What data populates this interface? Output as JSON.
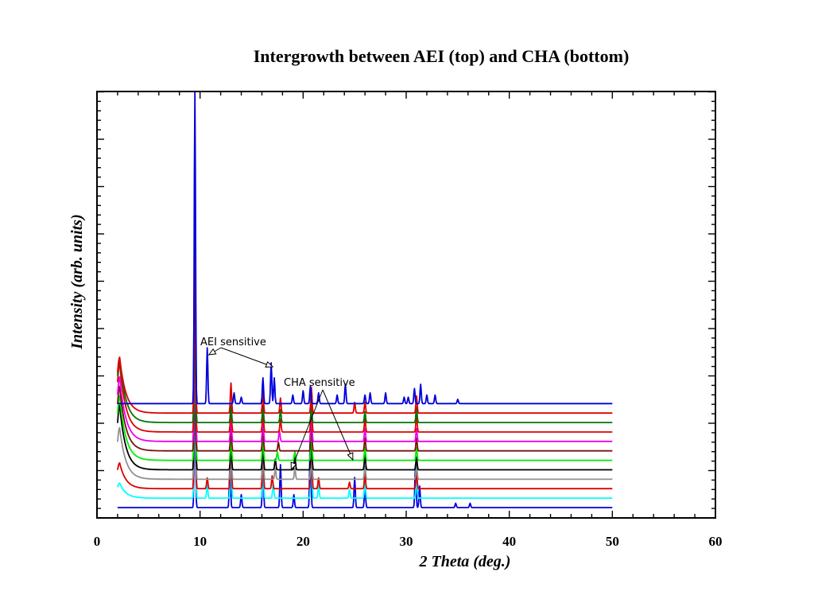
{
  "chart_data": {
    "type": "line",
    "title": "Intergrowth between AEI (top) and CHA (bottom)",
    "xlabel": "2 Theta (deg.)",
    "ylabel": "Intensity (arb. units)",
    "xlim": [
      0,
      60
    ],
    "x_ticks": [
      "0",
      "10",
      "20",
      "30",
      "40",
      "50",
      "60"
    ],
    "y_ticks_labeled": false,
    "grid": false,
    "legend": "none",
    "annotations": [
      {
        "text": "AEI sensitive",
        "arrows_to_2theta": [
          10.7,
          16.9
        ]
      },
      {
        "text": "CHA sensitive",
        "arrows_to_2theta": [
          19.0,
          24.9
        ]
      }
    ],
    "series": [
      {
        "color": "#0000dd",
        "x_range": [
          2,
          50
        ],
        "baseline": 0.0,
        "low_angle": 0.0,
        "peaks": [
          [
            9.5,
            3.2
          ],
          [
            12.9,
            1.0
          ],
          [
            14.0,
            0.3
          ],
          [
            16.1,
            1.0
          ],
          [
            17.8,
            1.0
          ],
          [
            19.1,
            0.3
          ],
          [
            20.7,
            1.8
          ],
          [
            25.0,
            0.7
          ],
          [
            26.0,
            0.5
          ],
          [
            30.9,
            1.0
          ],
          [
            31.3,
            0.5
          ],
          [
            34.8,
            0.1
          ],
          [
            36.2,
            0.1
          ]
        ]
      },
      {
        "color": "#00ffff",
        "x_range": [
          2,
          50
        ],
        "baseline": 0.22,
        "low_angle": 0.35,
        "peaks": [
          [
            9.5,
            5.0
          ],
          [
            10.7,
            0.3
          ],
          [
            13.0,
            0.9
          ],
          [
            16.1,
            0.9
          ],
          [
            17.1,
            0.35
          ],
          [
            20.8,
            1.2
          ],
          [
            21.5,
            0.3
          ],
          [
            24.5,
            0.2
          ],
          [
            26.0,
            0.4
          ],
          [
            31.0,
            0.5
          ]
        ]
      },
      {
        "color": "#dd0000",
        "x_range": [
          2,
          50
        ],
        "baseline": 0.44,
        "low_angle": 0.6,
        "peaks": [
          [
            9.5,
            5.0
          ],
          [
            10.7,
            0.25
          ],
          [
            13.0,
            0.9
          ],
          [
            16.1,
            0.85
          ],
          [
            17.0,
            0.3
          ],
          [
            20.8,
            1.1
          ],
          [
            21.5,
            0.25
          ],
          [
            24.5,
            0.15
          ],
          [
            26.0,
            0.35
          ],
          [
            31.0,
            0.4
          ]
        ]
      },
      {
        "color": "#909090",
        "x_range": [
          2,
          50
        ],
        "baseline": 0.66,
        "low_angle": 1.2,
        "peaks": [
          [
            9.5,
            5.0
          ],
          [
            13.0,
            0.7
          ],
          [
            16.1,
            0.7
          ],
          [
            17.3,
            0.25
          ],
          [
            19.2,
            0.25
          ],
          [
            20.8,
            0.9
          ],
          [
            26.0,
            0.3
          ],
          [
            31.0,
            0.35
          ]
        ]
      },
      {
        "color": "#000000",
        "x_range": [
          2,
          50
        ],
        "baseline": 0.88,
        "low_angle": 1.5,
        "peaks": [
          [
            9.5,
            5.0
          ],
          [
            13.0,
            0.6
          ],
          [
            16.1,
            0.6
          ],
          [
            17.3,
            0.25
          ],
          [
            19.2,
            0.3
          ],
          [
            20.8,
            0.8
          ],
          [
            26.0,
            0.35
          ],
          [
            31.0,
            0.3
          ]
        ]
      },
      {
        "color": "#00ee00",
        "x_range": [
          2,
          50
        ],
        "baseline": 1.1,
        "low_angle": 1.5,
        "peaks": [
          [
            9.5,
            5.0
          ],
          [
            13.0,
            0.55
          ],
          [
            16.1,
            0.55
          ],
          [
            17.5,
            0.2
          ],
          [
            19.2,
            0.2
          ],
          [
            20.8,
            0.75
          ],
          [
            26.0,
            0.3
          ],
          [
            31.0,
            0.3
          ]
        ]
      },
      {
        "color": "#7a1010",
        "x_range": [
          2,
          50
        ],
        "baseline": 1.32,
        "low_angle": 1.5,
        "peaks": [
          [
            9.5,
            5.0
          ],
          [
            13.0,
            0.55
          ],
          [
            16.1,
            0.55
          ],
          [
            17.6,
            0.2
          ],
          [
            20.8,
            0.7
          ],
          [
            26.0,
            0.3
          ],
          [
            31.0,
            0.3
          ]
        ]
      },
      {
        "color": "#ee00ee",
        "x_range": [
          2,
          50
        ],
        "baseline": 1.54,
        "low_angle": 1.5,
        "peaks": [
          [
            9.5,
            5.0
          ],
          [
            13.0,
            0.55
          ],
          [
            16.1,
            0.55
          ],
          [
            17.7,
            0.25
          ],
          [
            20.8,
            0.7
          ],
          [
            26.0,
            0.3
          ],
          [
            31.0,
            0.3
          ]
        ]
      },
      {
        "color": "#dd0000",
        "x_range": [
          2,
          50
        ],
        "baseline": 1.76,
        "low_angle": 1.6,
        "peaks": [
          [
            9.5,
            5.0
          ],
          [
            13.0,
            0.6
          ],
          [
            16.1,
            0.55
          ],
          [
            17.8,
            0.3
          ],
          [
            20.8,
            0.7
          ],
          [
            26.0,
            0.3
          ],
          [
            31.0,
            0.4
          ]
        ]
      },
      {
        "color": "#007700",
        "x_range": [
          2,
          50
        ],
        "baseline": 1.98,
        "low_angle": 1.5,
        "peaks": [
          [
            9.5,
            5.0
          ],
          [
            13.0,
            0.4
          ],
          [
            16.1,
            0.4
          ],
          [
            17.8,
            0.3
          ],
          [
            20.8,
            0.3
          ],
          [
            26.0,
            0.25
          ],
          [
            31.0,
            0.35
          ]
        ]
      },
      {
        "color": "#dd0000",
        "x_range": [
          2,
          50
        ],
        "baseline": 2.2,
        "low_angle": 1.3,
        "peaks": [
          [
            9.5,
            5.0
          ],
          [
            13.0,
            0.7
          ],
          [
            16.1,
            0.5
          ],
          [
            17.8,
            0.35
          ],
          [
            20.8,
            0.6
          ],
          [
            25.0,
            0.25
          ],
          [
            26.0,
            0.25
          ],
          [
            31.0,
            0.4
          ]
        ]
      },
      {
        "color": "#0000dd",
        "x_range": [
          2,
          50
        ],
        "baseline": 2.42,
        "low_angle": 0.0,
        "peaks": [
          [
            9.5,
            7.5
          ],
          [
            10.7,
            1.3
          ],
          [
            13.3,
            0.25
          ],
          [
            14.0,
            0.15
          ],
          [
            16.1,
            0.6
          ],
          [
            16.9,
            0.95
          ],
          [
            17.2,
            0.6
          ],
          [
            19.0,
            0.2
          ],
          [
            20.0,
            0.3
          ],
          [
            20.7,
            0.4
          ],
          [
            21.5,
            0.25
          ],
          [
            23.3,
            0.2
          ],
          [
            24.1,
            0.45
          ],
          [
            26.0,
            0.2
          ],
          [
            26.5,
            0.25
          ],
          [
            28.0,
            0.25
          ],
          [
            29.8,
            0.15
          ],
          [
            30.2,
            0.15
          ],
          [
            30.8,
            0.35
          ],
          [
            31.4,
            0.45
          ],
          [
            32.0,
            0.2
          ],
          [
            32.8,
            0.2
          ],
          [
            35.0,
            0.1
          ]
        ]
      }
    ]
  }
}
